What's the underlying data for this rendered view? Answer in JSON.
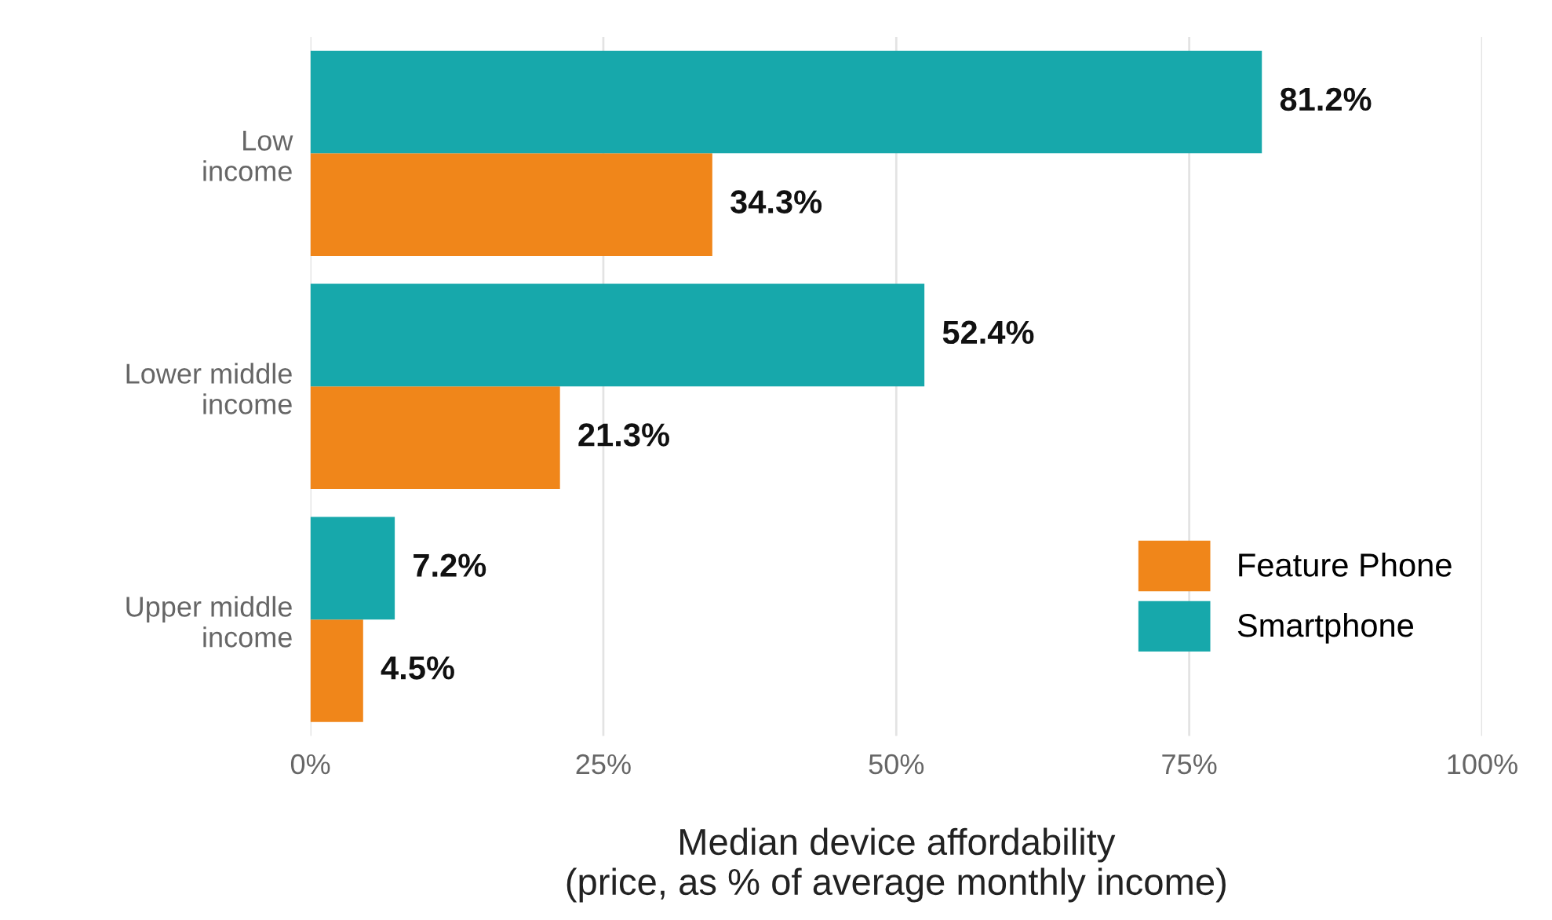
{
  "chart_data": {
    "type": "bar",
    "orientation": "horizontal",
    "xlabel": "Median device affordability\n(price, as % of average monthly income)",
    "categories": [
      "Low\nincome",
      "Lower middle\nincome",
      "Upper middle\nincome"
    ],
    "series": [
      {
        "name": "Feature Phone",
        "color": "#f0861a",
        "values": [
          34.3,
          21.3,
          4.5
        ],
        "value_labels": [
          "34.3%",
          "21.3%",
          "4.5%"
        ]
      },
      {
        "name": "Smartphone",
        "color": "#17a8ab",
        "values": [
          81.2,
          52.4,
          7.2
        ],
        "value_labels": [
          "81.2%",
          "52.4%",
          "7.2%"
        ]
      }
    ],
    "xlim": [
      0,
      100
    ],
    "xticks": [
      {
        "value": 0,
        "label": "0%"
      },
      {
        "value": 25,
        "label": "25%"
      },
      {
        "value": 50,
        "label": "50%"
      },
      {
        "value": 75,
        "label": "75%"
      },
      {
        "value": 100,
        "label": "100%"
      }
    ],
    "grid": "x",
    "legend": "right"
  }
}
